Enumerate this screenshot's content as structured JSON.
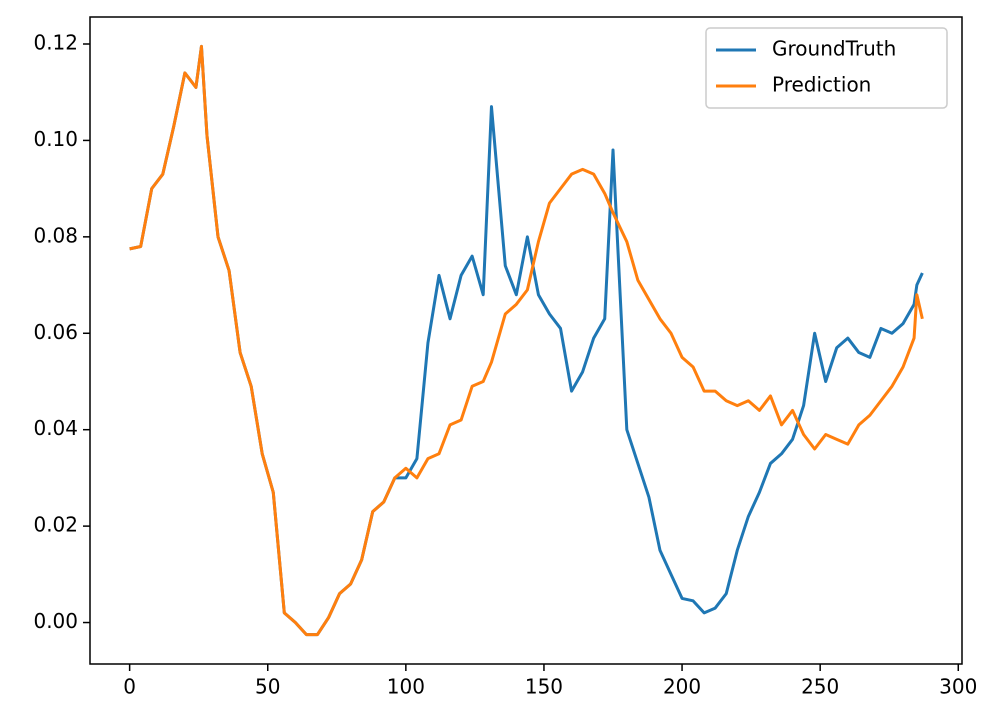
{
  "chart_data": {
    "type": "line",
    "x": [
      0,
      4,
      8,
      12,
      16,
      20,
      24,
      26,
      28,
      32,
      36,
      40,
      44,
      48,
      52,
      56,
      60,
      64,
      68,
      72,
      76,
      80,
      84,
      88,
      92,
      96,
      100,
      104,
      108,
      112,
      116,
      120,
      124,
      128,
      131,
      136,
      140,
      144,
      148,
      152,
      156,
      160,
      164,
      168,
      172,
      175,
      180,
      184,
      188,
      192,
      196,
      200,
      204,
      208,
      212,
      216,
      220,
      224,
      228,
      232,
      236,
      240,
      244,
      248,
      252,
      256,
      260,
      264,
      268,
      272,
      276,
      280,
      284,
      285,
      287
    ],
    "series": [
      {
        "name": "GroundTruth",
        "color": "#1f77b4",
        "values": [
          0.0775,
          0.078,
          0.09,
          0.093,
          0.103,
          0.114,
          0.111,
          0.1195,
          0.101,
          0.08,
          0.073,
          0.056,
          0.049,
          0.035,
          0.027,
          0.002,
          0.0,
          -0.0025,
          -0.0025,
          0.001,
          0.006,
          0.008,
          0.013,
          0.023,
          0.025,
          0.03,
          0.03,
          0.034,
          0.058,
          0.072,
          0.063,
          0.072,
          0.076,
          0.068,
          0.107,
          0.074,
          0.068,
          0.08,
          0.068,
          0.064,
          0.061,
          0.048,
          0.052,
          0.059,
          0.063,
          0.098,
          0.04,
          0.033,
          0.026,
          0.015,
          0.01,
          0.005,
          0.0045,
          0.002,
          0.003,
          0.006,
          0.015,
          0.022,
          0.027,
          0.033,
          0.035,
          0.038,
          0.045,
          0.06,
          0.05,
          0.057,
          0.059,
          0.056,
          0.055,
          0.061,
          0.06,
          0.062,
          0.066,
          0.07,
          0.0725
        ]
      },
      {
        "name": "Prediction",
        "color": "#ff7f0e",
        "values": [
          0.0775,
          0.078,
          0.09,
          0.093,
          0.103,
          0.114,
          0.111,
          0.1195,
          0.101,
          0.08,
          0.073,
          0.056,
          0.049,
          0.035,
          0.027,
          0.002,
          0.0,
          -0.0025,
          -0.0025,
          0.001,
          0.006,
          0.008,
          0.013,
          0.023,
          0.025,
          0.03,
          0.032,
          0.03,
          0.034,
          0.035,
          0.041,
          0.042,
          0.049,
          0.05,
          0.054,
          0.064,
          0.066,
          0.069,
          0.079,
          0.087,
          0.09,
          0.093,
          0.094,
          0.093,
          0.089,
          0.085,
          0.079,
          0.071,
          0.067,
          0.063,
          0.06,
          0.055,
          0.053,
          0.048,
          0.048,
          0.046,
          0.045,
          0.046,
          0.044,
          0.047,
          0.041,
          0.044,
          0.039,
          0.036,
          0.039,
          0.038,
          0.037,
          0.041,
          0.043,
          0.046,
          0.049,
          0.053,
          0.059,
          0.068,
          0.063
        ]
      }
    ],
    "xlim": [
      -14.35,
      301.35
    ],
    "xticks": [
      0,
      50,
      100,
      150,
      200,
      250,
      300
    ],
    "ylim": [
      -0.0086,
      0.1256
    ],
    "yticks": [
      {
        "value": 0,
        "label": "0.00"
      },
      0.02,
      0.04,
      0.06,
      0.08,
      {
        "value": 0.1,
        "label": "0.10"
      },
      0.12
    ],
    "legend": "upper right"
  }
}
